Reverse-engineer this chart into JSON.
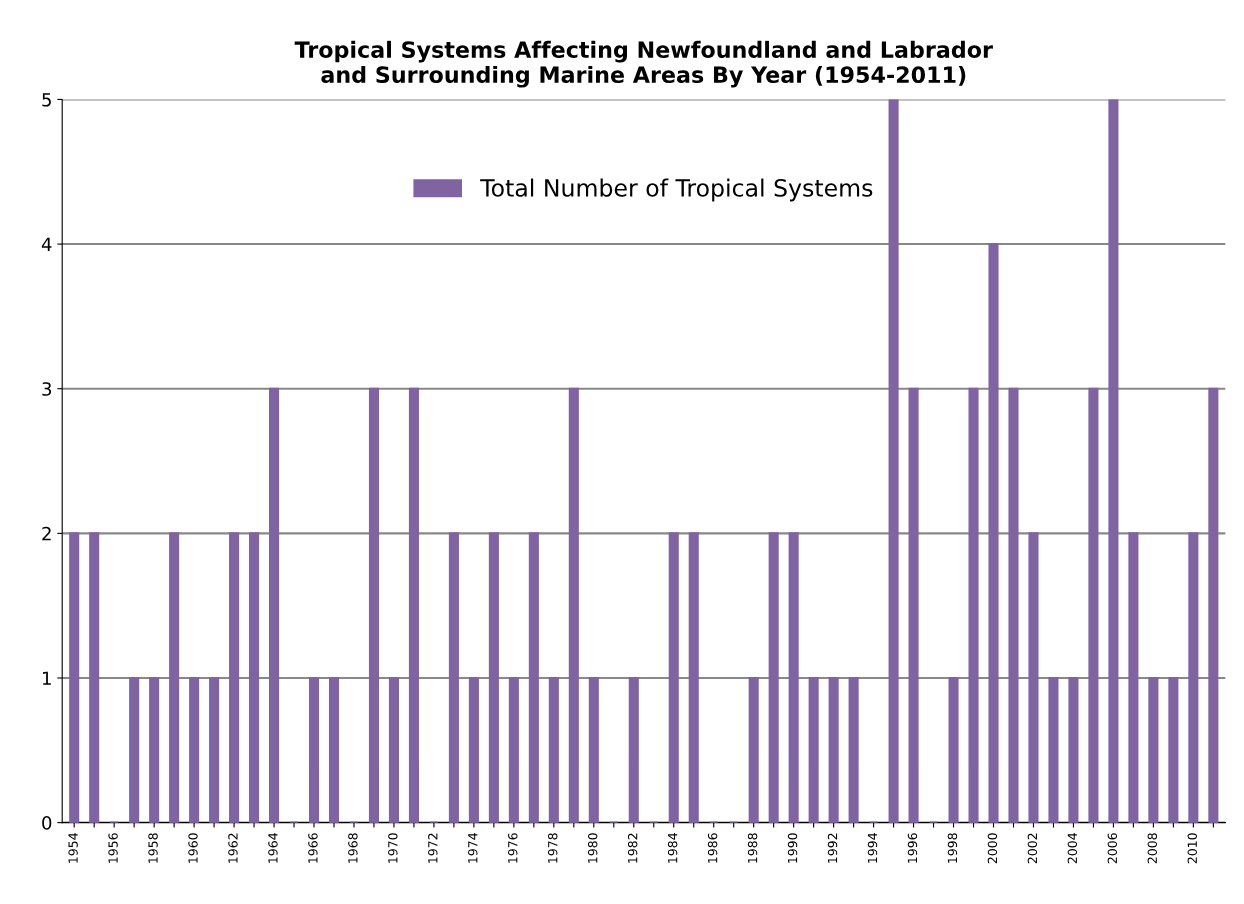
{
  "chart_data": {
    "type": "bar",
    "title": "Tropical Systems Affecting Newfoundland and Labrador\nand Surrounding Marine Areas By Year (1954-2011)",
    "categories": [
      "1954",
      null,
      "1956",
      null,
      "1958",
      null,
      "1960",
      null,
      "1962",
      null,
      "1964",
      null,
      "1966",
      null,
      "1968",
      null,
      "1970",
      null,
      "1972",
      null,
      "1974",
      null,
      "1976",
      null,
      "1978",
      null,
      "1980",
      null,
      "1982",
      null,
      "1984",
      null,
      "1986",
      null,
      "1988",
      null,
      "1990",
      null,
      "1992",
      null,
      "1994",
      null,
      "1996",
      null,
      "1998",
      null,
      "2000",
      null,
      "2002",
      null,
      "2004",
      null,
      "2006",
      null,
      "2008",
      null,
      "2010",
      null
    ],
    "series": [
      {
        "name": "Total Number of Tropical Systems",
        "color": "#8064a2",
        "values": [
          2,
          2,
          0,
          1,
          1,
          2,
          1,
          1,
          2,
          2,
          3,
          0,
          1,
          1,
          0,
          3,
          1,
          3,
          0,
          2,
          1,
          2,
          1,
          2,
          1,
          3,
          1,
          0,
          1,
          0,
          2,
          2,
          0,
          0,
          1,
          2,
          2,
          1,
          1,
          1,
          0,
          5,
          3,
          0,
          1,
          3,
          4,
          3,
          2,
          1,
          1,
          3,
          5,
          2,
          1,
          1,
          2,
          3
        ]
      }
    ],
    "ylim": [
      0,
      5
    ],
    "yticks": [
      0,
      1,
      2,
      3,
      4,
      5
    ],
    "grid": "y",
    "legend": "top"
  }
}
